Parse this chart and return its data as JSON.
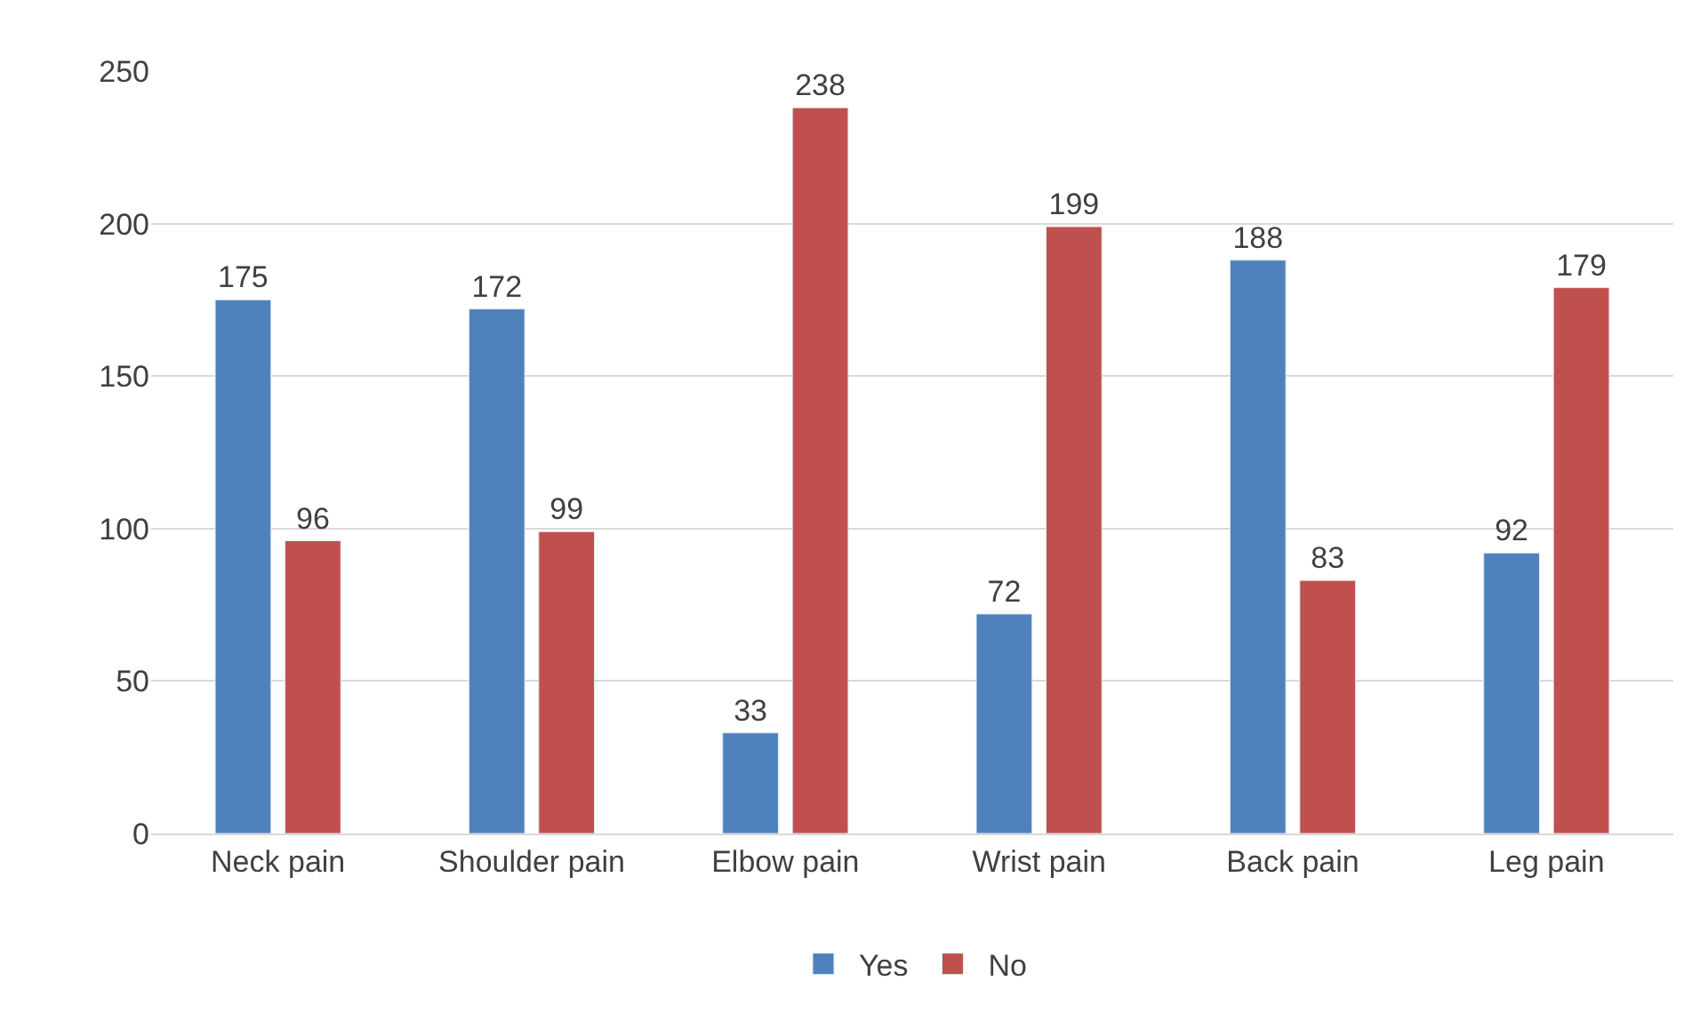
{
  "chart_data": {
    "type": "bar",
    "categories": [
      "Neck pain",
      "Shoulder pain",
      "Elbow pain",
      "Wrist pain",
      "Back pain",
      "Leg pain"
    ],
    "series": [
      {
        "name": "Yes",
        "color": "#4f81bd",
        "values": [
          175,
          172,
          33,
          72,
          188,
          92
        ]
      },
      {
        "name": "No",
        "color": "#c0504d",
        "values": [
          96,
          99,
          238,
          199,
          83,
          179
        ]
      }
    ],
    "ylim": [
      0,
      250
    ],
    "yticks": [
      0,
      50,
      100,
      150,
      200,
      250
    ],
    "grid": "y",
    "legend": "bottom",
    "data_labels": true
  }
}
